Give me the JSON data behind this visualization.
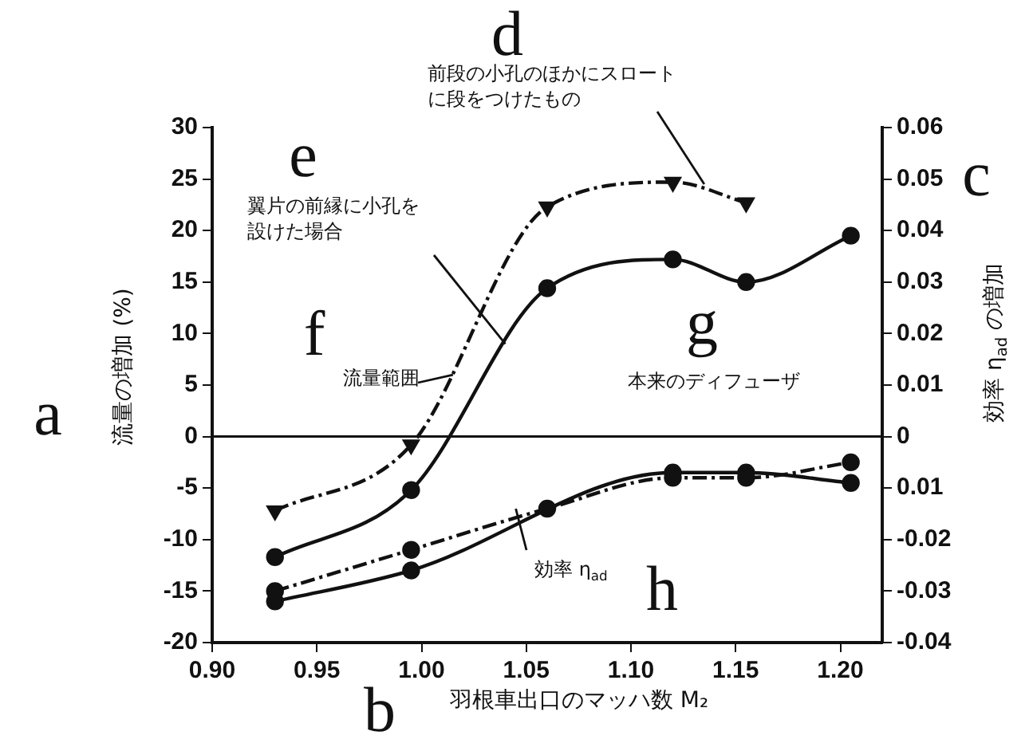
{
  "chart_data": {
    "type": "line",
    "xlabel": "羽根車出口のマッハ数 M₂",
    "ylabel": "流量の増加 (%)",
    "y2label": "効率 η$_{ad}$ の増加",
    "xlim": [
      0.9,
      1.22
    ],
    "xticks": [
      {
        "value": 0.9,
        "label": "0.90"
      },
      0.95,
      {
        "value": 1.0,
        "label": "1.00"
      },
      1.05,
      {
        "value": 1.1,
        "label": "1.10"
      },
      1.15,
      {
        "value": 1.2,
        "label": "1.20"
      }
    ],
    "ylim": [
      -20,
      30
    ],
    "yticks": [
      -20,
      -15,
      -10,
      -5,
      0,
      5,
      10,
      15,
      20,
      25,
      30
    ],
    "y2lim": [
      -0.04,
      0.06
    ],
    "y2ticks": [
      -0.04,
      -0.03,
      -0.02,
      {
        "value": -0.01,
        "label": "0.01"
      },
      0,
      0.01,
      0.02,
      0.03,
      0.04,
      0.05,
      0.06
    ],
    "grid": false,
    "legend": false,
    "series": [
      {
        "type": "line",
        "color": "#111111",
        "line_style": "dashed",
        "marker": "triangle",
        "x": [
          0.93,
          0.995,
          1.06,
          1.12,
          1.155
        ],
        "values": [
          -7.2,
          -0.8,
          22.3,
          24.7,
          22.7
        ]
      },
      {
        "type": "line",
        "color": "#111111",
        "line_style": "solid",
        "marker": "circle",
        "x": [
          0.93,
          0.995,
          1.06,
          1.12,
          1.155,
          1.205
        ],
        "values": [
          -11.7,
          -5.2,
          14.4,
          17.2,
          15,
          19.5
        ]
      },
      {
        "type": "line",
        "axis": "y2",
        "color": "#111111",
        "line_style": "dashed",
        "marker": "circle",
        "x": [
          0.93,
          0.995,
          1.06,
          1.12,
          1.155,
          1.205
        ],
        "values": [
          -0.03,
          -0.022,
          -0.014,
          -0.008,
          -0.008,
          -0.005
        ]
      },
      {
        "type": "line",
        "axis": "y2",
        "color": "#111111",
        "line_style": "solid",
        "marker": "circle",
        "x": [
          0.93,
          0.995,
          1.12,
          1.155,
          1.205
        ],
        "values": [
          -0.032,
          -0.026,
          -0.007,
          -0.007,
          -0.009
        ]
      }
    ],
    "ref_lines": [
      {
        "axis": "y",
        "value": 0,
        "label": "本来のディフューザ"
      }
    ],
    "annotations": [
      {
        "text": "前段の小孔のほかにスロートに段をつけたもの",
        "x": 1.135,
        "y": 24.5
      },
      {
        "text": "翼片の前縁に小孔を設けた場合",
        "x": 1.04,
        "y": 9
      },
      {
        "text": "流量範囲",
        "x": 1.015,
        "y": 6
      },
      {
        "text": "効率 η$_{ad}$",
        "x": 1.045,
        "y": -7
      },
      "a",
      "b",
      "c",
      "d",
      "e",
      "f",
      "g",
      "h"
    ]
  }
}
